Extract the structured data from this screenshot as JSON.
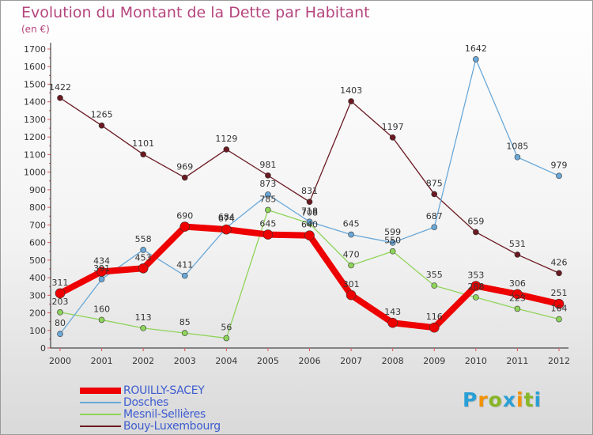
{
  "header": {
    "title": "Evolution du Montant de la Dette par Habitant",
    "unit": "(en €)"
  },
  "chart_data": {
    "type": "line",
    "title": "Evolution du Montant de la Dette par Habitant",
    "ylabel": "(en €)",
    "xlabel": "",
    "x": [
      "2000",
      "2001",
      "2002",
      "2003",
      "2004",
      "2005",
      "2006",
      "2007",
      "2008",
      "2009",
      "2010",
      "2011",
      "2012"
    ],
    "yticks": [
      0,
      100,
      200,
      300,
      400,
      500,
      600,
      700,
      800,
      900,
      1000,
      1100,
      1200,
      1300,
      1400,
      1500,
      1600,
      1700
    ],
    "ylim": [
      0,
      1700
    ],
    "grid": false,
    "legend_position": "bottom-left",
    "series": [
      {
        "name": "Bouy-Luxembourg",
        "color": "#6b1a22",
        "width": 1.3,
        "radius": 3.5,
        "values": [
          1422,
          1265,
          1101,
          969,
          1129,
          981,
          831,
          1403,
          1197,
          875,
          659,
          531,
          426
        ]
      },
      {
        "name": "Mesnil-Sellières",
        "color": "#8fd45a",
        "width": 1.3,
        "radius": 3.5,
        "values": [
          203,
          160,
          113,
          85,
          56,
          785,
          708,
          470,
          550,
          355,
          288,
          223,
          164
        ],
        "labels": [
          "203",
          "160",
          "113",
          "85",
          "56",
          "785",
          "708",
          "470",
          "550",
          "355",
          "288",
          "223",
          "164"
        ]
      },
      {
        "name": "Dosches",
        "color": "#6aa8d8",
        "width": 1.3,
        "radius": 3.5,
        "values": [
          80,
          391,
          558,
          411,
          684,
          873,
          718,
          645,
          599,
          687,
          1642,
          1085,
          979
        ],
        "labels": [
          "80",
          "391",
          "558",
          "411",
          "684",
          "873",
          "718",
          "645",
          "599",
          "687",
          "1642",
          "1085",
          "979"
        ]
      },
      {
        "name": "ROUILLY-SACEY",
        "color": "#ee0000",
        "width": 8,
        "radius": 6,
        "values": [
          311,
          434,
          453,
          690,
          674,
          645,
          640,
          301,
          143,
          116,
          353,
          306,
          251
        ]
      }
    ]
  },
  "legend": [
    {
      "label": "ROUILLY-SACEY",
      "color": "#ee0000",
      "thickness": 8
    },
    {
      "label": "Dosches",
      "color": "#6aa8d8",
      "thickness": 2
    },
    {
      "label": "Mesnil-Sellières",
      "color": "#8fd45a",
      "thickness": 2
    },
    {
      "label": "Bouy-Luxembourg",
      "color": "#6b1a22",
      "thickness": 2
    }
  ],
  "logo": {
    "letters": [
      "P",
      "r",
      "o",
      "x",
      "i",
      "t",
      "i"
    ],
    "colors": [
      "#2a9fd6",
      "#f39200",
      "#88b626",
      "#2a9fd6",
      "#f39200",
      "#88b626",
      "#2a9fd6"
    ]
  }
}
